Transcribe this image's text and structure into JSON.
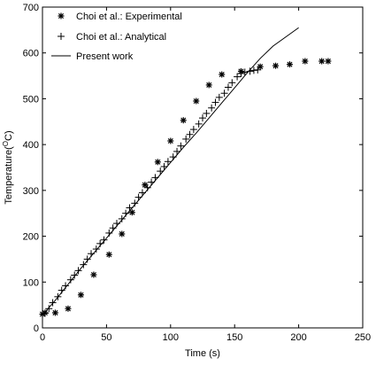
{
  "chart_data": {
    "type": "scatter",
    "xlabel": "Time (s)",
    "ylabel": "Temperature(",
    "ylabel_sup": "O",
    "ylabel_tail": "C)",
    "xlim": [
      0,
      250
    ],
    "ylim": [
      0,
      700
    ],
    "xticks": [
      0,
      50,
      100,
      150,
      200,
      250
    ],
    "yticks": [
      0,
      100,
      200,
      300,
      400,
      500,
      600,
      700
    ],
    "grid": false,
    "legend_position": "top-left",
    "series": [
      {
        "name": "Choi et al.: Experimental",
        "marker": "asterisk",
        "x": [
          0,
          2,
          10,
          20,
          30,
          40,
          52,
          62,
          70,
          80,
          90,
          100,
          110,
          120,
          130,
          140,
          155,
          170,
          182,
          193,
          205,
          218,
          223
        ],
        "y": [
          30,
          33,
          33,
          42,
          72,
          116,
          160,
          205,
          252,
          312,
          362,
          408,
          453,
          495,
          530,
          553,
          560,
          570,
          572,
          575,
          582,
          582,
          582
        ]
      },
      {
        "name": "Choi et al.: Analytical",
        "marker": "plus",
        "x": [
          2,
          5,
          8,
          12,
          15,
          18,
          22,
          25,
          28,
          32,
          35,
          38,
          42,
          45,
          48,
          52,
          55,
          58,
          62,
          65,
          68,
          72,
          75,
          78,
          82,
          85,
          88,
          92,
          95,
          98,
          102,
          105,
          108,
          112,
          115,
          118,
          122,
          125,
          128,
          132,
          135,
          138,
          142,
          145,
          148,
          152,
          155,
          158,
          162,
          165,
          168
        ],
        "y": [
          32,
          42,
          55,
          68,
          82,
          92,
          105,
          115,
          125,
          138,
          150,
          162,
          172,
          184,
          192,
          207,
          218,
          228,
          238,
          250,
          262,
          272,
          285,
          295,
          306,
          318,
          328,
          342,
          352,
          363,
          373,
          385,
          397,
          412,
          422,
          433,
          445,
          458,
          468,
          480,
          492,
          503,
          512,
          525,
          535,
          548,
          555,
          558,
          560,
          562,
          563
        ]
      },
      {
        "name": "Present work",
        "marker": "line",
        "x": [
          0,
          10,
          20,
          30,
          40,
          50,
          60,
          70,
          80,
          90,
          100,
          110,
          120,
          130,
          140,
          150,
          160,
          170,
          180,
          190,
          200
        ],
        "y": [
          28,
          60,
          95,
          130,
          163,
          196,
          229,
          262,
          295,
          328,
          361,
          394,
          425,
          458,
          491,
          524,
          557,
          588,
          615,
          635,
          655
        ]
      }
    ]
  }
}
